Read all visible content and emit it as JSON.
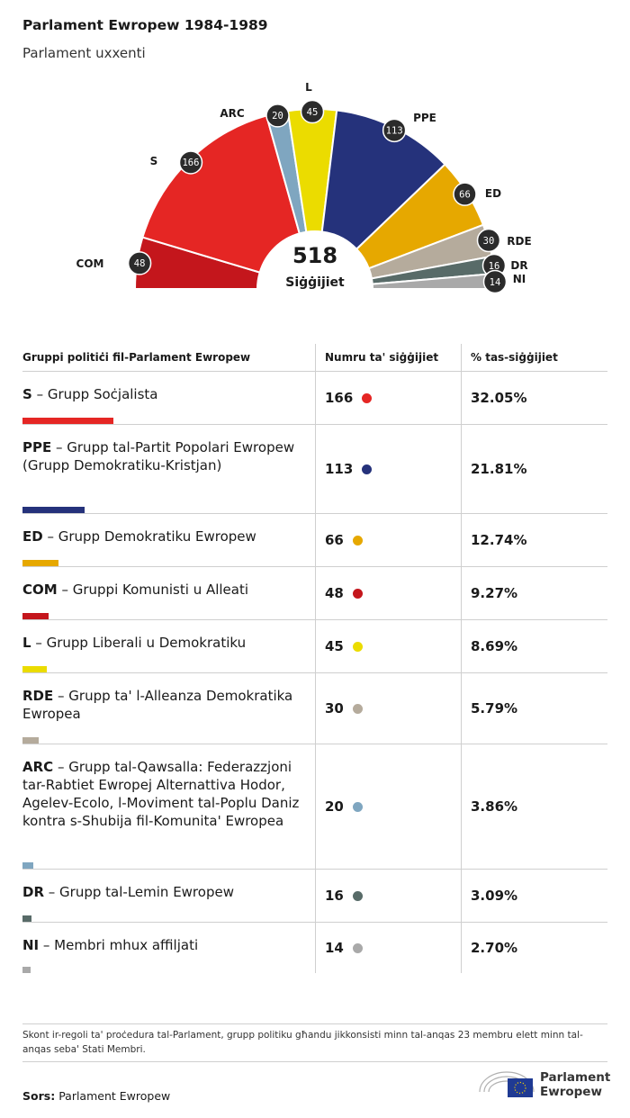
{
  "title": "Parlament Ewropew 1984-1989",
  "subtitle": "Parlament uxxenti",
  "chart_data": {
    "type": "pie",
    "total": 518,
    "total_label": "Siġġijiet",
    "series": [
      {
        "abbr": "COM",
        "value": 48,
        "color": "#c4161c"
      },
      {
        "abbr": "S",
        "value": 166,
        "color": "#e52624"
      },
      {
        "abbr": "ARC",
        "value": 20,
        "color": "#7fa6c0"
      },
      {
        "abbr": "L",
        "value": 45,
        "color": "#ebdc00"
      },
      {
        "abbr": "PPE",
        "value": 113,
        "color": "#25327b"
      },
      {
        "abbr": "ED",
        "value": 66,
        "color": "#e6a800"
      },
      {
        "abbr": "RDE",
        "value": 30,
        "color": "#b5ab9c"
      },
      {
        "abbr": "DR",
        "value": 16,
        "color": "#586b68"
      },
      {
        "abbr": "NI",
        "value": 14,
        "color": "#a9a9a9"
      }
    ]
  },
  "table": {
    "headers": [
      "Gruppi politiċi fil-Parlament Ewropew",
      "Numru ta' siġġijiet",
      "% tas-siġġijiet"
    ],
    "rows": [
      {
        "abbr": "S",
        "name": " – Grupp Soċjalista",
        "seats": "166",
        "pct": "32.05%",
        "color": "#e52624"
      },
      {
        "abbr": "PPE",
        "name": " – Grupp tal-Partit Popolari Ewropew (Grupp Demokratiku-Kristjan)",
        "seats": "113",
        "pct": "21.81%",
        "color": "#25327b"
      },
      {
        "abbr": "ED",
        "name": " – Grupp Demokratiku Ewropew",
        "seats": "66",
        "pct": "12.74%",
        "color": "#e6a800"
      },
      {
        "abbr": "COM",
        "name": " – Gruppi Komunisti u Alleati",
        "seats": "48",
        "pct": "9.27%",
        "color": "#c4161c"
      },
      {
        "abbr": "L",
        "name": " – Grupp Liberali u Demokratiku",
        "seats": "45",
        "pct": "8.69%",
        "color": "#ebdc00"
      },
      {
        "abbr": "RDE",
        "name": " – Grupp ta' l-Alleanza Demokratika Ewropea",
        "seats": "30",
        "pct": "5.79%",
        "color": "#b5ab9c"
      },
      {
        "abbr": "ARC",
        "name": " – Grupp tal-Qawsalla: Federazzjoni tar-Rabtiet Ewropej Alternattiva Hodor, Agelev-Ecolo, l-Moviment tal-Poplu Daniz kontra s-Shubija fil-Komunita' Ewropea",
        "seats": "20",
        "pct": "3.86%",
        "color": "#7fa6c0"
      },
      {
        "abbr": "DR",
        "name": " – Grupp tal-Lemin Ewropew",
        "seats": "16",
        "pct": "3.09%",
        "color": "#586b68"
      },
      {
        "abbr": "NI",
        "name": " – Membri mhux affiljati",
        "seats": "14",
        "pct": "2.70%",
        "color": "#a9a9a9"
      }
    ]
  },
  "note": "Skont ir-regoli ta' proċedura tal-Parlament, grupp politiku għandu jikkonsisti minn tal-anqas 23 membru elett minn tal-anqas seba' Stati Membri.",
  "source_label": "Sors:",
  "source_value": "Parlament Ewropew",
  "logo": {
    "line1": "Parlament",
    "line2": "Ewropew",
    "icon": "eu-parliament-logo-icon"
  }
}
